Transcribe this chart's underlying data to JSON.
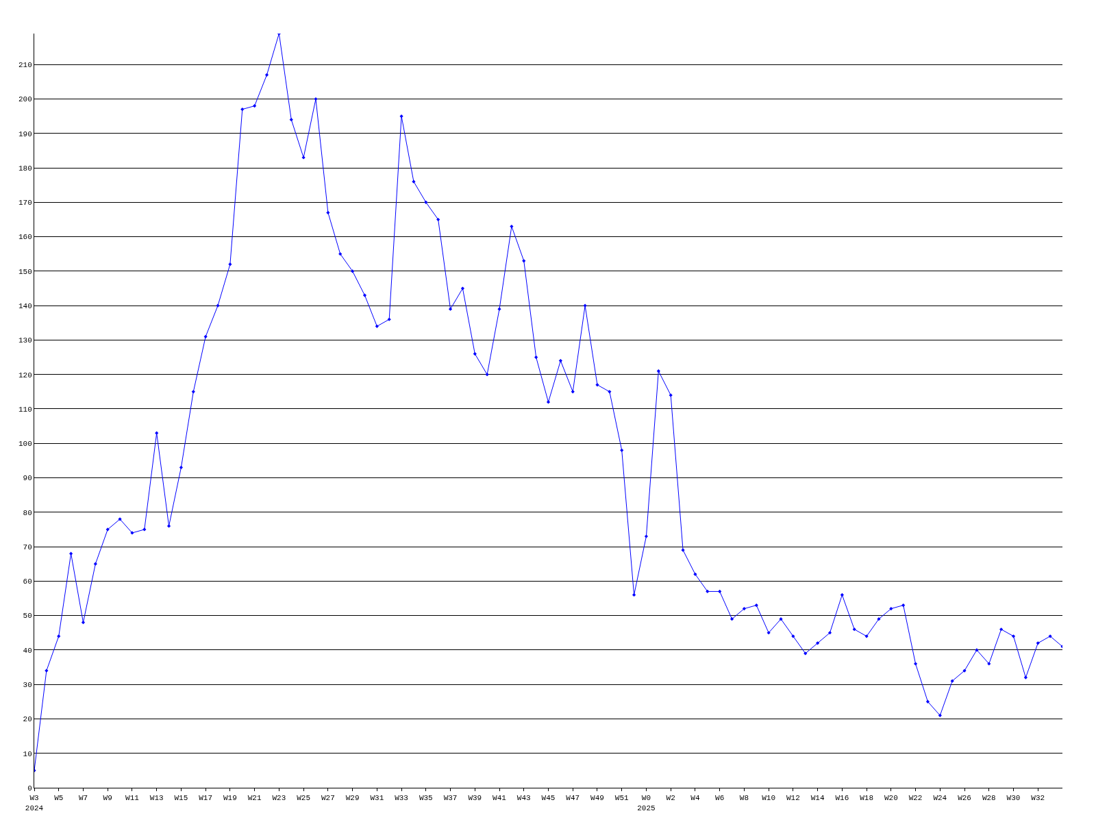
{
  "chart_data": {
    "type": "line",
    "categories": [
      "W3\n2024",
      null,
      "W5",
      null,
      "W7",
      null,
      "W9",
      null,
      "W11",
      null,
      "W13",
      null,
      "W15",
      null,
      "W17",
      null,
      "W19",
      null,
      "W21",
      null,
      "W23",
      null,
      "W25",
      null,
      "W27",
      null,
      "W29",
      null,
      "W31",
      null,
      "W33",
      null,
      "W35",
      null,
      "W37",
      null,
      "W39",
      null,
      "W41",
      null,
      "W43",
      null,
      "W45",
      null,
      "W47",
      null,
      "W49",
      null,
      "W51",
      null,
      "W0\n2025",
      null,
      "W2",
      null,
      "W4",
      null,
      "W6",
      null,
      "W8",
      null,
      "W10",
      null,
      "W12",
      null,
      "W14",
      null,
      "W16",
      null,
      "W18",
      null,
      "W20",
      null,
      "W22",
      null,
      "W24",
      null,
      "W26",
      null,
      "W28",
      null,
      "W30",
      null,
      "W32",
      null,
      null
    ],
    "series": [
      {
        "color": "#0000ff",
        "values": [
          5,
          34,
          44,
          68,
          48,
          65,
          75,
          78,
          74,
          75,
          103,
          76,
          93,
          115,
          131,
          140,
          152,
          197,
          198,
          207,
          219,
          194,
          183,
          200,
          167,
          155,
          150,
          143,
          134,
          136,
          195,
          176,
          170,
          165,
          139,
          145,
          126,
          120,
          139,
          163,
          153,
          125,
          112,
          124,
          115,
          140,
          117,
          115,
          98,
          56,
          73,
          121,
          114,
          69,
          62,
          57,
          57,
          49,
          52,
          53,
          45,
          49,
          44,
          39,
          42,
          45,
          56,
          46,
          44,
          49,
          52,
          53,
          36,
          25,
          21,
          31,
          34,
          40,
          36,
          46,
          44,
          32,
          42,
          44,
          41
        ]
      }
    ],
    "ylim": [
      0,
      219
    ],
    "yticks": [
      0,
      10,
      20,
      30,
      40,
      50,
      60,
      70,
      80,
      90,
      100,
      110,
      120,
      130,
      140,
      150,
      160,
      170,
      180,
      190,
      200,
      210
    ],
    "grid": "y",
    "marker": "diamond",
    "line_style": "solid"
  }
}
